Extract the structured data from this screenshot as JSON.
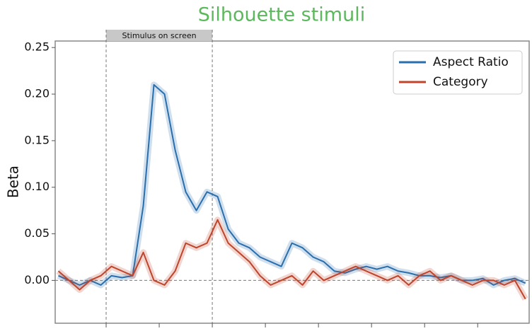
{
  "chart_data": {
    "type": "line",
    "title": "Silhouette stimuli",
    "ylabel": "Beta",
    "annotation": "Stimulus on screen",
    "vlines": [
      1,
      3
    ],
    "hline": 0,
    "x": [
      0.1,
      0.3,
      0.5,
      0.7,
      0.9,
      1.1,
      1.3,
      1.5,
      1.7,
      1.9,
      2.1,
      2.3,
      2.5,
      2.7,
      2.9,
      3.1,
      3.3,
      3.5,
      3.7,
      3.9,
      4.1,
      4.3,
      4.5,
      4.7,
      4.9,
      5.1,
      5.3,
      5.5,
      5.7,
      5.9,
      6.1,
      6.3,
      6.5,
      6.7,
      6.9,
      7.1,
      7.3,
      7.5,
      7.7,
      7.9,
      8.1,
      8.3,
      8.5,
      8.7,
      8.9
    ],
    "series": [
      {
        "name": "Aspect Ratio",
        "color": "#2a6fad",
        "values": [
          0.005,
          0.0,
          -0.005,
          0.0,
          -0.005,
          0.005,
          0.003,
          0.005,
          0.08,
          0.21,
          0.2,
          0.14,
          0.095,
          0.075,
          0.095,
          0.09,
          0.055,
          0.04,
          0.035,
          0.025,
          0.02,
          0.015,
          0.04,
          0.035,
          0.025,
          0.02,
          0.01,
          0.008,
          0.012,
          0.015,
          0.012,
          0.015,
          0.01,
          0.008,
          0.005,
          0.005,
          0.003,
          0.005,
          0.0,
          0.0,
          0.002,
          -0.005,
          0.0,
          0.002,
          -0.003
        ]
      },
      {
        "name": "Category",
        "color": "#c0432b",
        "values": [
          0.01,
          0.0,
          -0.01,
          0.0,
          0.005,
          0.015,
          0.01,
          0.005,
          0.03,
          0.0,
          -0.005,
          0.01,
          0.04,
          0.035,
          0.04,
          0.065,
          0.04,
          0.03,
          0.02,
          0.005,
          -0.005,
          0.0,
          0.005,
          -0.005,
          0.01,
          0.0,
          0.005,
          0.01,
          0.015,
          0.01,
          0.005,
          0.0,
          0.005,
          -0.005,
          0.005,
          0.01,
          0.0,
          0.005,
          0.0,
          -0.005,
          0.0,
          0.0,
          -0.005,
          0.0,
          -0.02
        ]
      }
    ],
    "xlim": [
      0.04,
      8.97
    ],
    "xticks": [
      1,
      2,
      3,
      4,
      5,
      6,
      7,
      8
    ],
    "ylim": [
      -0.046,
      0.257
    ],
    "yticks": [
      {
        "value": 0,
        "label": "0.00"
      },
      0.05,
      {
        "value": 0.1,
        "label": "0.10"
      },
      0.15,
      {
        "value": 0.2,
        "label": "0.20"
      },
      0.25
    ],
    "legend": "upper right"
  }
}
